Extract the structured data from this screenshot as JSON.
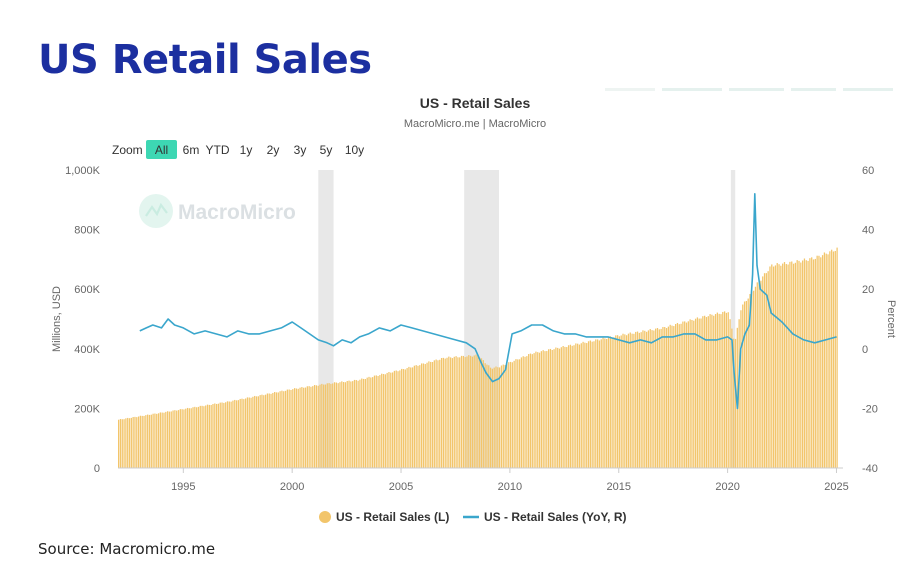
{
  "page": {
    "title": "US Retail Sales",
    "source": "Source: Macromicro.me"
  },
  "colors": {
    "title": "#1c2fa0",
    "bar": "#f2c56b",
    "line": "#3aa6cc",
    "recession": "#e8e8e8",
    "zoom_active": "#3dd7b3"
  },
  "chart_data": {
    "type": "bar",
    "title": "US - Retail Sales",
    "subtitle": "MacroMicro.me | MacroMicro",
    "watermark": "MacroMicro",
    "zoom": {
      "label": "Zoom",
      "options": [
        "All",
        "6m",
        "YTD",
        "1y",
        "2y",
        "3y",
        "5y",
        "10y"
      ],
      "selected": "All"
    },
    "xlim": [
      1992,
      2025.3
    ],
    "x_ticks": [
      "1995",
      "2000",
      "2005",
      "2010",
      "2015",
      "2020",
      "2025"
    ],
    "ylabel": "Millions, USD",
    "ylim": [
      0,
      1000000
    ],
    "y_ticks": [
      "0",
      "200K",
      "400K",
      "600K",
      "800K",
      "1,000K"
    ],
    "y2label": "Percent",
    "y2lim": [
      -40,
      60
    ],
    "y2_ticks": [
      "-40",
      "-20",
      "0",
      "20",
      "40",
      "60"
    ],
    "recessions": [
      [
        2001.2,
        2001.9
      ],
      [
        2007.9,
        2009.5
      ],
      [
        2020.15,
        2020.35
      ]
    ],
    "legend": {
      "position": "bottom-center",
      "entries": [
        "US - Retail Sales (L)",
        "US - Retail Sales (YoY, R)"
      ]
    },
    "series": [
      {
        "name": "US - Retail Sales (L)",
        "kind": "bar",
        "axis": "left",
        "anchors": [
          [
            1992.0,
            162000
          ],
          [
            1995.0,
            198000
          ],
          [
            1997.0,
            222000
          ],
          [
            2000.0,
            265000
          ],
          [
            2001.5,
            282000
          ],
          [
            2003.0,
            295000
          ],
          [
            2005.0,
            330000
          ],
          [
            2007.0,
            370000
          ],
          [
            2008.5,
            378000
          ],
          [
            2009.1,
            335000
          ],
          [
            2009.5,
            340000
          ],
          [
            2011.0,
            385000
          ],
          [
            2013.0,
            415000
          ],
          [
            2015.0,
            445000
          ],
          [
            2017.0,
            470000
          ],
          [
            2019.0,
            510000
          ],
          [
            2020.0,
            525000
          ],
          [
            2020.3,
            420000
          ],
          [
            2020.6,
            540000
          ],
          [
            2021.0,
            580000
          ],
          [
            2021.3,
            615000
          ],
          [
            2022.0,
            680000
          ],
          [
            2023.0,
            690000
          ],
          [
            2024.0,
            705000
          ],
          [
            2025.0,
            735000
          ]
        ]
      },
      {
        "name": "US - Retail Sales (YoY, R)",
        "kind": "line",
        "axis": "right",
        "x": [
          1993.0,
          1993.3,
          1993.6,
          1994.0,
          1994.3,
          1994.6,
          1995.0,
          1995.5,
          1996.0,
          1996.5,
          1997.0,
          1997.5,
          1998.0,
          1998.5,
          1999.0,
          1999.5,
          2000.0,
          2000.4,
          2000.8,
          2001.2,
          2001.6,
          2001.9,
          2002.3,
          2002.7,
          2003.1,
          2003.5,
          2004.0,
          2004.5,
          2005.0,
          2005.5,
          2006.0,
          2006.5,
          2007.0,
          2007.5,
          2008.0,
          2008.4,
          2008.7,
          2008.9,
          2009.2,
          2009.5,
          2009.8,
          2010.1,
          2010.5,
          2011.0,
          2011.5,
          2012.0,
          2012.5,
          2013.0,
          2013.5,
          2014.0,
          2014.5,
          2015.0,
          2015.5,
          2016.0,
          2016.5,
          2017.0,
          2017.5,
          2018.0,
          2018.5,
          2019.0,
          2019.5,
          2020.0,
          2020.2,
          2020.3,
          2020.45,
          2020.6,
          2020.8,
          2021.0,
          2021.15,
          2021.25,
          2021.35,
          2021.5,
          2021.8,
          2022.0,
          2022.5,
          2023.0,
          2023.5,
          2024.0,
          2024.5,
          2025.0
        ],
        "y": [
          6,
          7,
          8,
          7,
          10,
          8,
          7,
          5,
          6,
          5,
          4,
          6,
          5,
          5,
          6,
          7,
          9,
          7,
          5,
          3,
          2,
          1,
          3,
          2,
          4,
          5,
          7,
          6,
          8,
          7,
          6,
          5,
          4,
          3,
          2,
          0,
          -5,
          -8,
          -11,
          -10,
          -7,
          5,
          6,
          8,
          8,
          6,
          5,
          5,
          4,
          4,
          4,
          3,
          2,
          3,
          2,
          4,
          4,
          5,
          5,
          3,
          3,
          4,
          3,
          -8,
          -20,
          0,
          5,
          8,
          25,
          52,
          28,
          20,
          18,
          12,
          9,
          5,
          3,
          2,
          3,
          4
        ]
      }
    ]
  }
}
